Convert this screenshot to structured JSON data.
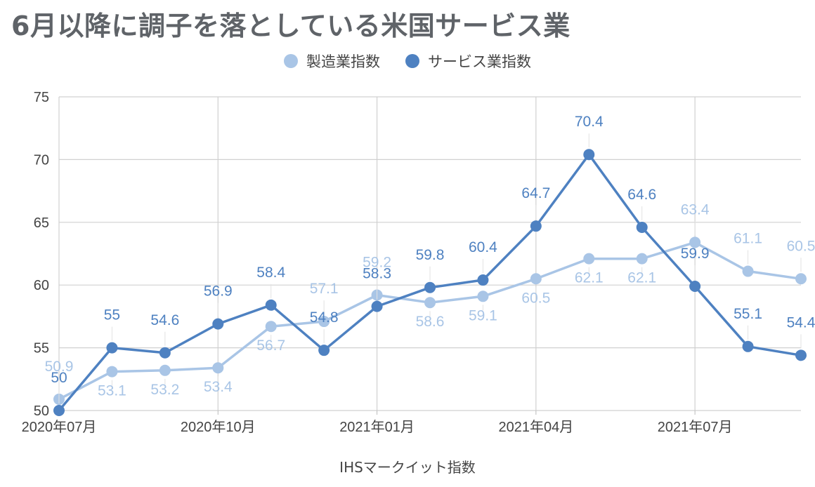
{
  "title": "6月以降に調子を落としている米国サービス業",
  "source_label": "IHSマークイット指数",
  "chart_data": {
    "type": "line",
    "x": [
      "2020年07月",
      "2020年08月",
      "2020年09月",
      "2020年10月",
      "2020年11月",
      "2020年12月",
      "2021年01月",
      "2021年02月",
      "2021年03月",
      "2021年04月",
      "2021年05月",
      "2021年06月",
      "2021年07月",
      "2021年08月",
      "2021年09月"
    ],
    "x_tick_labels": [
      "2020年07月",
      "2020年10月",
      "2021年01月",
      "2021年04月",
      "2021年07月"
    ],
    "x_tick_indices": [
      0,
      3,
      6,
      9,
      12
    ],
    "ylim": [
      50,
      75
    ],
    "yticks": [
      50,
      55,
      60,
      65,
      70,
      75
    ],
    "grid": true,
    "legend_position": "top-center",
    "series": [
      {
        "name": "製造業指数",
        "color": "#a9c5e6",
        "values": [
          50.9,
          53.1,
          53.2,
          53.4,
          56.7,
          57.1,
          59.2,
          58.6,
          59.1,
          60.5,
          62.1,
          62.1,
          63.4,
          61.1,
          60.5
        ],
        "label_positions": [
          "above",
          "below",
          "below",
          "below",
          "below",
          "above",
          "above",
          "below",
          "below",
          "below",
          "below",
          "below",
          "above",
          "above",
          "above"
        ]
      },
      {
        "name": "サービス業指数",
        "color": "#4e81c1",
        "values": [
          50,
          55,
          54.6,
          56.9,
          58.4,
          54.8,
          58.3,
          59.8,
          60.4,
          64.7,
          70.4,
          64.6,
          59.9,
          55.1,
          54.4
        ],
        "label_positions": [
          "above",
          "above",
          "above",
          "above",
          "above",
          "above",
          "above",
          "above",
          "above",
          "above",
          "above",
          "above",
          "above",
          "above",
          "above"
        ]
      }
    ]
  }
}
